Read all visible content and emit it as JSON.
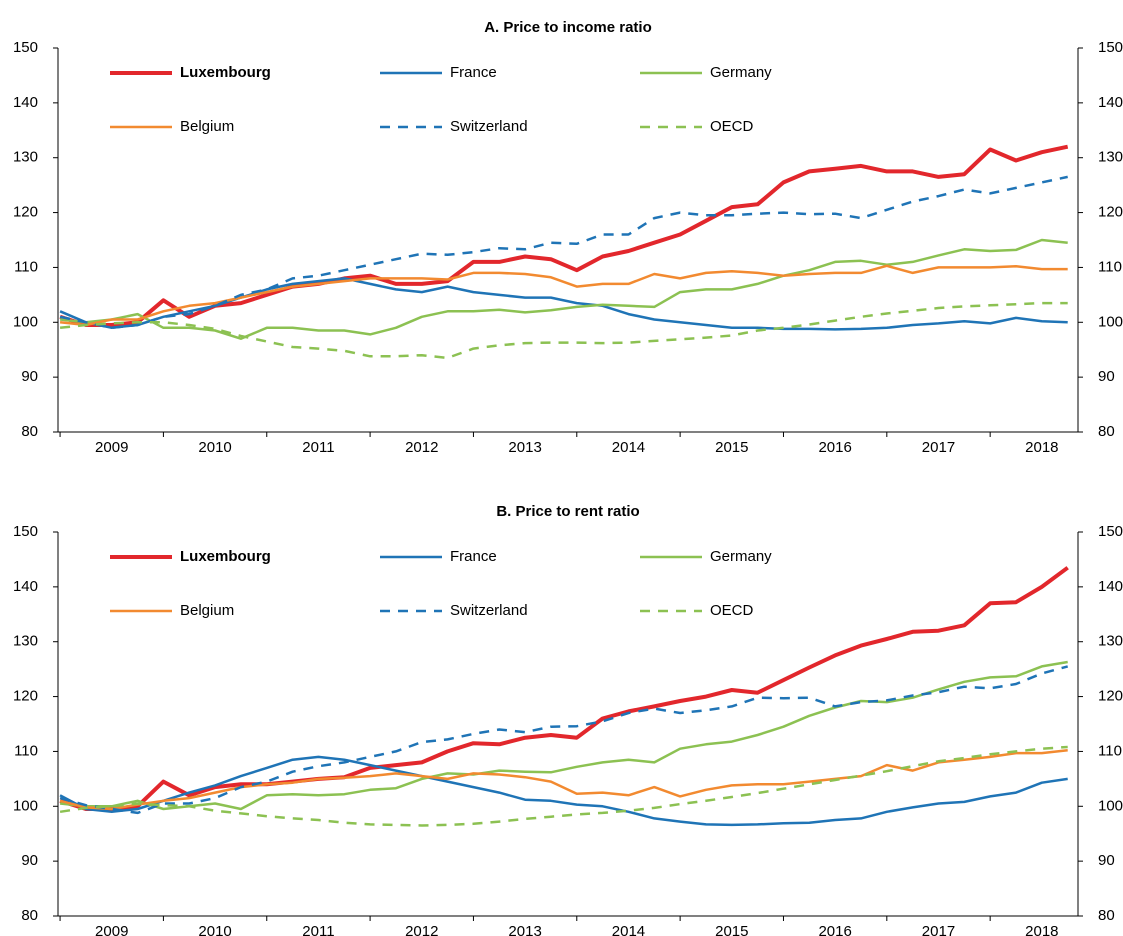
{
  "chart_data": [
    {
      "type": "line",
      "title": "A. Price to income ratio",
      "x": [
        2009,
        2009.25,
        2009.5,
        2009.75,
        2010,
        2010.25,
        2010.5,
        2010.75,
        2011,
        2011.25,
        2011.5,
        2011.75,
        2012,
        2012.25,
        2012.5,
        2012.75,
        2013,
        2013.25,
        2013.5,
        2013.75,
        2014,
        2014.25,
        2014.5,
        2014.75,
        2015,
        2015.25,
        2015.5,
        2015.75,
        2016,
        2016.25,
        2016.5,
        2016.75,
        2017,
        2017.25,
        2017.5,
        2017.75,
        2018,
        2018.25,
        2018.5,
        2018.75
      ],
      "xlim": [
        2008.98,
        2018.85
      ],
      "xticks": [
        {
          "value": 2009.5,
          "label": "2009"
        },
        {
          "value": 2010.5,
          "label": "2010"
        },
        {
          "value": 2011.5,
          "label": "2011"
        },
        {
          "value": 2012.5,
          "label": "2012"
        },
        {
          "value": 2013.5,
          "label": "2013"
        },
        {
          "value": 2014.5,
          "label": "2014"
        },
        {
          "value": 2015.5,
          "label": "2015"
        },
        {
          "value": 2016.5,
          "label": "2016"
        },
        {
          "value": 2017.5,
          "label": "2017"
        },
        {
          "value": 2018.5,
          "label": "2018"
        }
      ],
      "ylim": [
        80,
        150
      ],
      "yticks": [
        80,
        90,
        100,
        110,
        120,
        130,
        140,
        150
      ],
      "series": [
        {
          "name": "Luxembourg",
          "color": "#e2272c",
          "linestyle": "solid",
          "bold": true,
          "values": [
            101,
            99.5,
            99.5,
            100,
            104,
            101,
            103,
            103.5,
            105,
            106.5,
            107,
            108,
            108.5,
            107,
            107,
            107.5,
            111,
            111,
            112,
            111.5,
            109.5,
            112,
            113,
            114.5,
            116,
            118.5,
            121,
            121.5,
            125.5,
            127.5,
            128,
            128.5,
            127.5,
            127.5,
            126.5,
            127,
            131.5,
            129.5,
            131,
            132
          ]
        },
        {
          "name": "France",
          "color": "#1f74b6",
          "linestyle": "solid",
          "bold": false,
          "values": [
            102,
            100,
            99,
            99.5,
            101,
            102,
            103,
            104.5,
            106,
            107,
            107.5,
            108,
            107,
            106,
            105.5,
            106.5,
            105.5,
            105,
            104.5,
            104.5,
            103.5,
            103,
            101.5,
            100.5,
            100,
            99.5,
            99,
            99,
            98.8,
            98.8,
            98.7,
            98.8,
            99,
            99.5,
            99.8,
            100.2,
            99.8,
            100.8,
            100.2,
            100
          ]
        },
        {
          "name": "Germany",
          "color": "#8cc152",
          "linestyle": "solid",
          "bold": false,
          "values": [
            100.5,
            100,
            100.5,
            101.5,
            99,
            99,
            98.5,
            97,
            99,
            99,
            98.5,
            98.5,
            97.8,
            99,
            101,
            102,
            102,
            102.3,
            101.8,
            102.2,
            102.8,
            103.2,
            103,
            102.8,
            105.5,
            106,
            106,
            107,
            108.5,
            109.5,
            111,
            111.2,
            110.5,
            111,
            112.2,
            113.3,
            113,
            113.2,
            115,
            114.5
          ]
        },
        {
          "name": "Belgium",
          "color": "#f28a30",
          "linestyle": "solid",
          "bold": false,
          "values": [
            100,
            99.5,
            100.5,
            100.5,
            102,
            103,
            103.5,
            104.5,
            105.5,
            106.5,
            107,
            107.5,
            108,
            108,
            108,
            107.8,
            109,
            109,
            108.8,
            108.2,
            106.5,
            107,
            107,
            108.8,
            108,
            109,
            109.3,
            109,
            108.5,
            108.8,
            109,
            109,
            110.3,
            109,
            110,
            110,
            110,
            110.2,
            109.7,
            109.7
          ]
        },
        {
          "name": "Switzerland",
          "color": "#1f74b6",
          "linestyle": "dashed",
          "bold": false,
          "values": [
            101,
            100,
            99,
            99.5,
            101,
            101.5,
            103,
            105,
            106,
            108,
            108.5,
            109.5,
            110.5,
            111.5,
            112.5,
            112.3,
            112.8,
            113.5,
            113.3,
            114.5,
            114.3,
            116,
            116,
            119,
            120,
            119.5,
            119.5,
            119.8,
            120,
            119.7,
            119.8,
            119,
            120.5,
            122,
            123,
            124.2,
            123.5,
            124.5,
            125.5,
            126.5
          ]
        },
        {
          "name": "OECD",
          "color": "#8cc152",
          "linestyle": "dashed",
          "bold": false,
          "values": [
            99,
            99.5,
            99.8,
            100,
            100,
            99.5,
            98.8,
            97.5,
            96.5,
            95.5,
            95.2,
            94.8,
            93.8,
            93.8,
            94,
            93.5,
            95.2,
            95.8,
            96.2,
            96.3,
            96.3,
            96.2,
            96.3,
            96.6,
            96.9,
            97.2,
            97.6,
            98.5,
            99,
            99.6,
            100.3,
            101,
            101.6,
            102.1,
            102.6,
            102.9,
            103.1,
            103.3,
            103.5,
            103.5
          ]
        }
      ]
    },
    {
      "type": "line",
      "title": "B. Price to rent ratio",
      "x": [
        2009,
        2009.25,
        2009.5,
        2009.75,
        2010,
        2010.25,
        2010.5,
        2010.75,
        2011,
        2011.25,
        2011.5,
        2011.75,
        2012,
        2012.25,
        2012.5,
        2012.75,
        2013,
        2013.25,
        2013.5,
        2013.75,
        2014,
        2014.25,
        2014.5,
        2014.75,
        2015,
        2015.25,
        2015.5,
        2015.75,
        2016,
        2016.25,
        2016.5,
        2016.75,
        2017,
        2017.25,
        2017.5,
        2017.75,
        2018,
        2018.25,
        2018.5,
        2018.75
      ],
      "xlim": [
        2008.98,
        2018.85
      ],
      "xticks": [
        {
          "value": 2009.5,
          "label": "2009"
        },
        {
          "value": 2010.5,
          "label": "2010"
        },
        {
          "value": 2011.5,
          "label": "2011"
        },
        {
          "value": 2012.5,
          "label": "2012"
        },
        {
          "value": 2013.5,
          "label": "2013"
        },
        {
          "value": 2014.5,
          "label": "2014"
        },
        {
          "value": 2015.5,
          "label": "2015"
        },
        {
          "value": 2016.5,
          "label": "2016"
        },
        {
          "value": 2017.5,
          "label": "2017"
        },
        {
          "value": 2018.5,
          "label": "2018"
        }
      ],
      "ylim": [
        80,
        150
      ],
      "yticks": [
        80,
        90,
        100,
        110,
        120,
        130,
        140,
        150
      ],
      "series": [
        {
          "name": "Luxembourg",
          "color": "#e2272c",
          "linestyle": "solid",
          "bold": true,
          "values": [
            101,
            99.5,
            99.5,
            100,
            104.5,
            102,
            103.5,
            104,
            104,
            104.5,
            105,
            105.3,
            107,
            107.5,
            108,
            110,
            111.5,
            111.3,
            112.5,
            113,
            112.5,
            116,
            117.3,
            118.2,
            119.2,
            120,
            121.2,
            120.7,
            123,
            125.3,
            127.5,
            129.3,
            130.5,
            131.8,
            132,
            133,
            137,
            137.2,
            140,
            143.5
          ]
        },
        {
          "name": "France",
          "color": "#1f74b6",
          "linestyle": "solid",
          "bold": false,
          "values": [
            102,
            99.5,
            99,
            99.5,
            101,
            102.5,
            103.8,
            105.5,
            107,
            108.5,
            109,
            108.5,
            107.5,
            106.5,
            105.5,
            104.5,
            103.5,
            102.5,
            101.2,
            101,
            100.3,
            100,
            99,
            97.8,
            97.2,
            96.7,
            96.6,
            96.7,
            96.9,
            97,
            97.5,
            97.8,
            99,
            99.8,
            100.5,
            100.8,
            101.8,
            102.5,
            104.3,
            105
          ]
        },
        {
          "name": "Germany",
          "color": "#8cc152",
          "linestyle": "solid",
          "bold": false,
          "values": [
            100.5,
            100,
            100,
            101,
            99.5,
            100,
            100.5,
            99.5,
            102,
            102.2,
            102,
            102.2,
            103,
            103.3,
            105,
            106,
            105.8,
            106.5,
            106.3,
            106.2,
            107.2,
            108,
            108.5,
            108,
            110.5,
            111.3,
            111.8,
            113,
            114.5,
            116.5,
            118,
            119.2,
            119,
            119.8,
            121.3,
            122.7,
            123.5,
            123.7,
            125.5,
            126.3
          ]
        },
        {
          "name": "Belgium",
          "color": "#f28a30",
          "linestyle": "solid",
          "bold": false,
          "values": [
            101,
            99.8,
            99.5,
            100.3,
            101,
            101.5,
            102.5,
            103.5,
            104,
            104.3,
            105,
            105.2,
            105.5,
            106,
            105.5,
            105,
            106,
            105.8,
            105.3,
            104.5,
            102.3,
            102.5,
            102,
            103.5,
            101.8,
            103,
            103.8,
            104,
            104,
            104.5,
            105,
            105.5,
            107.5,
            106.5,
            108,
            108.5,
            109,
            109.7,
            109.7,
            110.2
          ]
        },
        {
          "name": "Switzerland",
          "color": "#1f74b6",
          "linestyle": "dashed",
          "bold": false,
          "values": [
            101.5,
            100.2,
            99.5,
            98.8,
            100.5,
            100.5,
            101.5,
            103.5,
            104.5,
            106.3,
            107.3,
            108,
            109,
            110,
            111.7,
            112.2,
            113.2,
            114,
            113.5,
            114.5,
            114.6,
            115.5,
            117,
            117.8,
            117,
            117.5,
            118.2,
            119.8,
            119.7,
            119.8,
            118.2,
            119,
            119.3,
            120.2,
            120.8,
            121.8,
            121.5,
            122.3,
            124.2,
            125.5
          ]
        },
        {
          "name": "OECD",
          "color": "#8cc152",
          "linestyle": "dashed",
          "bold": false,
          "values": [
            99,
            99.7,
            100,
            100.5,
            100.2,
            100,
            99.2,
            98.7,
            98.2,
            97.8,
            97.5,
            97,
            96.7,
            96.6,
            96.5,
            96.6,
            96.8,
            97.2,
            97.7,
            98.1,
            98.5,
            98.8,
            99.2,
            99.7,
            100.4,
            101,
            101.7,
            102.4,
            103.2,
            104,
            104.8,
            105.6,
            106.4,
            107.3,
            108.2,
            108.8,
            109.5,
            110,
            110.5,
            110.8
          ]
        }
      ]
    }
  ]
}
